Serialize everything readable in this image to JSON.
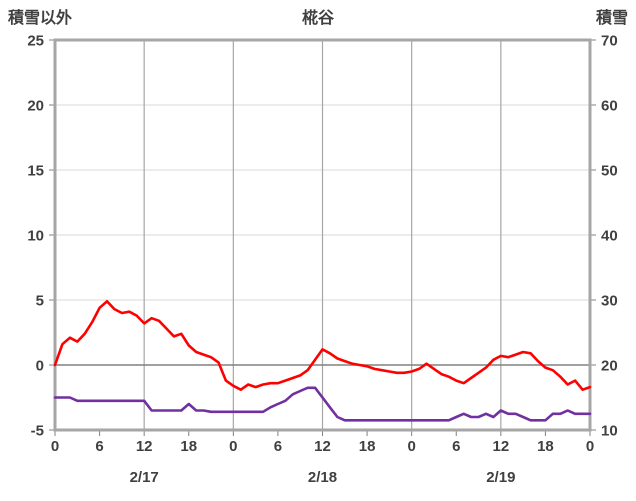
{
  "header": {
    "left_label": "積雪以外",
    "title": "椛谷",
    "right_label": "積雪"
  },
  "chart_data": {
    "type": "line",
    "title": "椛谷",
    "legend_position": "none",
    "grid": true,
    "left_axis": {
      "label": "積雪以外",
      "min": -5,
      "max": 25,
      "ticks": [
        25,
        20,
        15,
        10,
        5,
        0,
        -5
      ]
    },
    "right_axis": {
      "label": "積雪",
      "min": 10,
      "max": 70,
      "ticks": [
        70,
        60,
        50,
        40,
        30,
        20,
        10
      ]
    },
    "x_axis": {
      "hours_total": 72,
      "hour_ticks": [
        "0",
        "6",
        "12",
        "18",
        "0",
        "6",
        "12",
        "18",
        "0",
        "6",
        "12",
        "18",
        "0"
      ],
      "day_labels": [
        "2/17",
        "2/18",
        "2/19"
      ],
      "gridline_every_hours": 12
    },
    "series": [
      {
        "name": "積雪以外",
        "axis": "left",
        "color": "#FF0000",
        "values": [
          0.0,
          1.6,
          2.1,
          1.8,
          2.4,
          3.3,
          4.4,
          4.9,
          4.3,
          4.0,
          4.1,
          3.8,
          3.2,
          3.6,
          3.4,
          2.8,
          2.2,
          2.4,
          1.5,
          1.0,
          0.8,
          0.6,
          0.2,
          -1.2,
          -1.6,
          -1.9,
          -1.5,
          -1.7,
          -1.5,
          -1.4,
          -1.4,
          -1.2,
          -1.0,
          -0.8,
          -0.4,
          0.4,
          1.2,
          0.9,
          0.5,
          0.3,
          0.1,
          0.0,
          -0.1,
          -0.3,
          -0.4,
          -0.5,
          -0.6,
          -0.6,
          -0.5,
          -0.3,
          0.1,
          -0.3,
          -0.7,
          -0.9,
          -1.2,
          -1.4,
          -1.0,
          -0.6,
          -0.2,
          0.4,
          0.7,
          0.6,
          0.8,
          1.0,
          0.9,
          0.3,
          -0.2,
          -0.4,
          -0.9,
          -1.5,
          -1.2,
          -1.9,
          -1.7
        ]
      },
      {
        "name": "積雪",
        "axis": "right",
        "color": "#7030A0",
        "values": [
          15,
          15,
          15,
          14.5,
          14.5,
          14.5,
          14.5,
          14.5,
          14.5,
          14.5,
          14.5,
          14.5,
          14.5,
          13,
          13,
          13,
          13,
          13,
          14,
          13,
          13,
          12.8,
          12.8,
          12.8,
          12.8,
          12.8,
          12.8,
          12.8,
          12.8,
          13.5,
          14,
          14.5,
          15.5,
          16,
          16.5,
          16.5,
          15,
          13.5,
          12,
          11.5,
          11.5,
          11.5,
          11.5,
          11.5,
          11.5,
          11.5,
          11.5,
          11.5,
          11.5,
          11.5,
          11.5,
          11.5,
          11.5,
          11.5,
          12,
          12.5,
          12,
          12,
          12.5,
          12,
          13,
          12.5,
          12.5,
          12,
          11.5,
          11.5,
          11.5,
          12.5,
          12.5,
          13,
          12.5,
          12.5,
          12.5
        ]
      }
    ],
    "colors": {
      "grid_light": "#D9D9D9",
      "grid_dark": "#A6A6A6",
      "zero_line": "#808080",
      "border": "#A6A6A6",
      "text": "#404040"
    }
  }
}
